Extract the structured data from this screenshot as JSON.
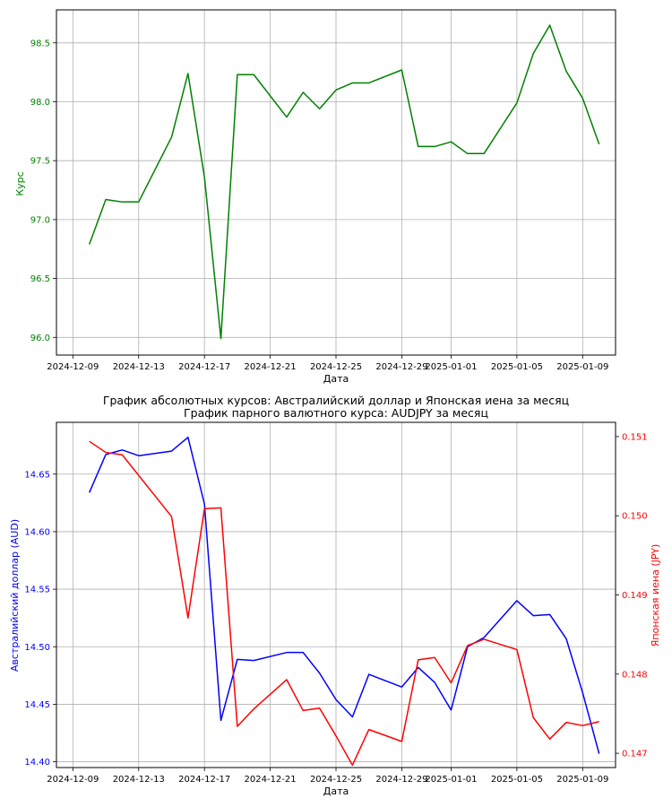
{
  "colors": {
    "series_top": "#008000",
    "series_aud": "#0000ff",
    "series_jpy": "#ff0000"
  },
  "chart_data": [
    {
      "type": "line",
      "title": "",
      "xlabel": "Дата",
      "ylabel": "Курс",
      "grid": true,
      "ylim": [
        95.85,
        98.78
      ],
      "xlim": [
        "2024-12-08",
        "2025-01-11"
      ],
      "x_ticks": [
        "2024-12-09",
        "2024-12-13",
        "2024-12-17",
        "2024-12-21",
        "2024-12-25",
        "2024-12-29",
        "2025-01-01",
        "2025-01-05",
        "2025-01-09"
      ],
      "y_ticks": [
        "96.0",
        "96.5",
        "97.0",
        "97.5",
        "98.0",
        "98.5"
      ],
      "series": [
        {
          "color": "#008000",
          "axis": "left",
          "points": [
            [
              "2024-12-10",
              96.79
            ],
            [
              "2024-12-11",
              97.17
            ],
            [
              "2024-12-12",
              97.15
            ],
            [
              "2024-12-13",
              97.15
            ],
            [
              "2024-12-15",
              97.7
            ],
            [
              "2024-12-16",
              98.24
            ],
            [
              "2024-12-17",
              97.36
            ],
            [
              "2024-12-18",
              95.99
            ],
            [
              "2024-12-19",
              98.23
            ],
            [
              "2024-12-20",
              98.23
            ],
            [
              "2024-12-22",
              97.87
            ],
            [
              "2024-12-23",
              98.08
            ],
            [
              "2024-12-24",
              97.94
            ],
            [
              "2024-12-25",
              98.1
            ],
            [
              "2024-12-26",
              98.16
            ],
            [
              "2024-12-27",
              98.16
            ],
            [
              "2024-12-29",
              98.27
            ],
            [
              "2024-12-30",
              97.62
            ],
            [
              "2024-12-31",
              97.62
            ],
            [
              "2025-01-01",
              97.66
            ],
            [
              "2025-01-02",
              97.56
            ],
            [
              "2025-01-03",
              97.56
            ],
            [
              "2025-01-05",
              97.99
            ],
            [
              "2025-01-06",
              98.41
            ],
            [
              "2025-01-07",
              98.65
            ],
            [
              "2025-01-08",
              98.26
            ],
            [
              "2025-01-09",
              98.03
            ],
            [
              "2025-01-10",
              97.64
            ]
          ]
        }
      ]
    },
    {
      "type": "line",
      "title": "График абсолютных курсов: Австралийский доллар и Японская иена за месяц",
      "subtitle": "График парного валютного курса: AUDJPY за месяц",
      "xlabel": "Дата",
      "ylabel": "Австралийский доллар (AUD)",
      "ylabel_right": "Японская иена (JPY)",
      "grid": true,
      "ylim": [
        14.395,
        14.695
      ],
      "ylim_right": [
        0.14682,
        0.15118
      ],
      "xlim": [
        "2024-12-08",
        "2025-01-11"
      ],
      "x_ticks": [
        "2024-12-09",
        "2024-12-13",
        "2024-12-17",
        "2024-12-21",
        "2024-12-25",
        "2024-12-29",
        "2025-01-01",
        "2025-01-05",
        "2025-01-09"
      ],
      "y_ticks": [
        "14.40",
        "14.45",
        "14.50",
        "14.55",
        "14.60",
        "14.65"
      ],
      "y_ticks_right": [
        "0.147",
        "0.148",
        "0.149",
        "0.150",
        "0.151"
      ],
      "series": [
        {
          "color": "#0000ff",
          "axis": "left",
          "points": [
            [
              "2024-12-10",
              14.634
            ],
            [
              "2024-12-11",
              14.667
            ],
            [
              "2024-12-12",
              14.671
            ],
            [
              "2024-12-13",
              14.666
            ],
            [
              "2024-12-15",
              14.67
            ],
            [
              "2024-12-16",
              14.682
            ],
            [
              "2024-12-17",
              14.624
            ],
            [
              "2024-12-18",
              14.436
            ],
            [
              "2024-12-19",
              14.489
            ],
            [
              "2024-12-20",
              14.488
            ],
            [
              "2024-12-22",
              14.495
            ],
            [
              "2024-12-23",
              14.495
            ],
            [
              "2024-12-24",
              14.477
            ],
            [
              "2024-12-25",
              14.454
            ],
            [
              "2024-12-26",
              14.439
            ],
            [
              "2024-12-27",
              14.476
            ],
            [
              "2024-12-29",
              14.465
            ],
            [
              "2024-12-30",
              14.482
            ],
            [
              "2024-12-31",
              14.469
            ],
            [
              "2025-01-01",
              14.445
            ],
            [
              "2025-01-02",
              14.5
            ],
            [
              "2025-01-03",
              14.508
            ],
            [
              "2025-01-05",
              14.54
            ],
            [
              "2025-01-06",
              14.527
            ],
            [
              "2025-01-07",
              14.528
            ],
            [
              "2025-01-08",
              14.507
            ],
            [
              "2025-01-09",
              14.46
            ],
            [
              "2025-01-10",
              14.407
            ]
          ]
        },
        {
          "color": "#ff0000",
          "axis": "right",
          "points": [
            [
              "2024-12-10",
              0.15094
            ],
            [
              "2024-12-11",
              0.1508
            ],
            [
              "2024-12-12",
              0.15077
            ],
            [
              "2024-12-15",
              0.14999
            ],
            [
              "2024-12-16",
              0.14871
            ],
            [
              "2024-12-17",
              0.15009
            ],
            [
              "2024-12-18",
              0.1501
            ],
            [
              "2024-12-19",
              0.14734
            ],
            [
              "2024-12-20",
              0.14756
            ],
            [
              "2024-12-22",
              0.14793
            ],
            [
              "2024-12-23",
              0.14754
            ],
            [
              "2024-12-24",
              0.14757
            ],
            [
              "2024-12-25",
              0.14722
            ],
            [
              "2024-12-26",
              0.14685
            ],
            [
              "2024-12-27",
              0.1473
            ],
            [
              "2024-12-29",
              0.14715
            ],
            [
              "2024-12-30",
              0.14818
            ],
            [
              "2024-12-31",
              0.14821
            ],
            [
              "2025-01-01",
              0.14789
            ],
            [
              "2025-01-02",
              0.14836
            ],
            [
              "2025-01-03",
              0.14844
            ],
            [
              "2025-01-05",
              0.14831
            ],
            [
              "2025-01-06",
              0.14745
            ],
            [
              "2025-01-07",
              0.14718
            ],
            [
              "2025-01-08",
              0.14739
            ],
            [
              "2025-01-09",
              0.14735
            ],
            [
              "2025-01-10",
              0.1474
            ]
          ]
        }
      ]
    }
  ]
}
